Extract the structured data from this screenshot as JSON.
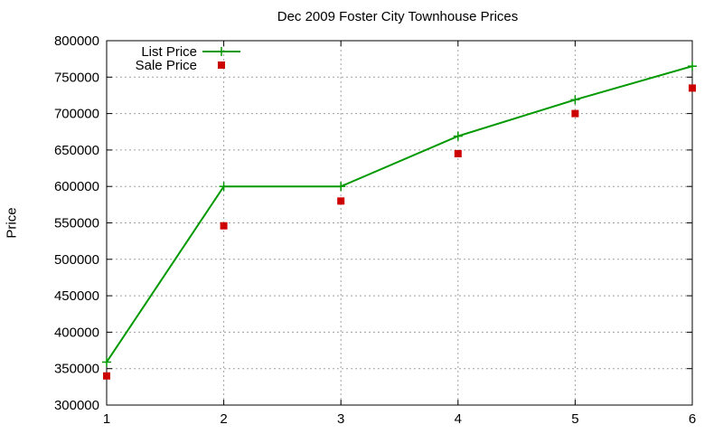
{
  "chart_data": {
    "type": "line",
    "title": "Dec 2009 Foster City Townhouse Prices",
    "xlabel": "",
    "ylabel": "Price",
    "xlim": [
      1,
      6
    ],
    "ylim": [
      300000,
      800000
    ],
    "xticks": [
      1,
      2,
      3,
      4,
      5,
      6
    ],
    "yticks": [
      300000,
      350000,
      400000,
      450000,
      500000,
      550000,
      600000,
      650000,
      700000,
      750000,
      800000
    ],
    "grid": true,
    "legend_position": "top-left",
    "x": [
      1,
      2,
      3,
      4,
      5,
      6
    ],
    "series": [
      {
        "name": "List Price",
        "style": "line-with-plus-markers",
        "color": "#009900",
        "values": [
          359000,
          600000,
          600000,
          669000,
          719000,
          765000
        ]
      },
      {
        "name": "Sale Price",
        "style": "square-points",
        "color": "#cc0000",
        "values": [
          340000,
          546000,
          580000,
          645000,
          700000,
          735000
        ]
      }
    ]
  }
}
